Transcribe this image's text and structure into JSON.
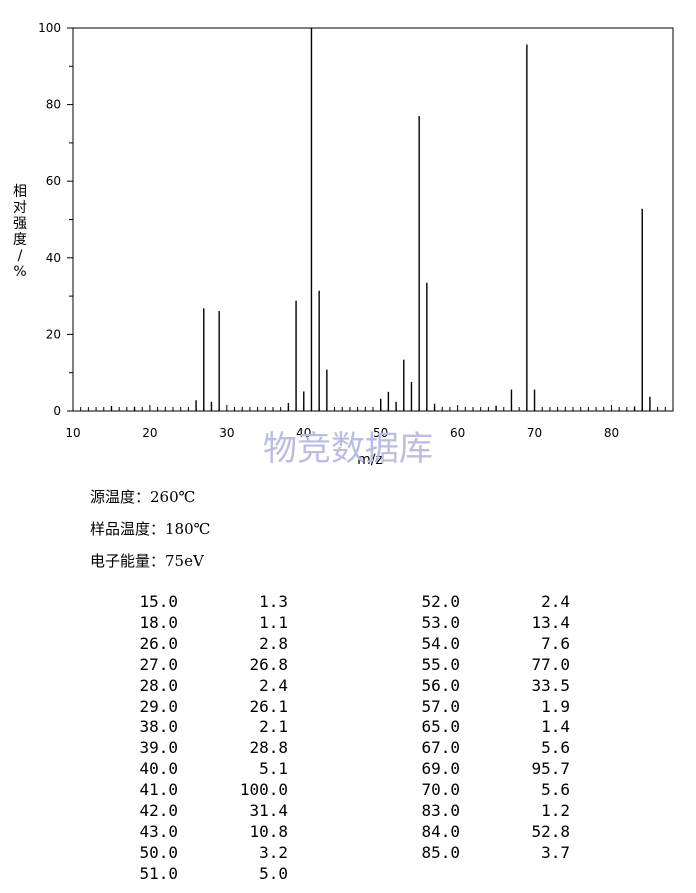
{
  "chart_data": {
    "type": "bar",
    "title": "",
    "xlabel": "m/z",
    "ylabel": "相对强度/%",
    "xlim": [
      10,
      88
    ],
    "ylim": [
      0,
      100
    ],
    "x_ticks": [
      "10",
      "20",
      "30",
      "40",
      "50",
      "60",
      "70",
      "80"
    ],
    "y_ticks": [
      "0",
      "20",
      "40",
      "60",
      "80",
      "100"
    ],
    "grid": false,
    "series": [
      {
        "x": [
          15,
          18,
          26,
          27,
          28,
          29,
          38,
          39,
          40,
          41,
          42,
          43,
          50,
          51,
          52,
          53,
          54,
          55,
          56,
          57,
          65,
          67,
          69,
          70,
          83,
          84,
          85
        ],
        "values": [
          1.3,
          1.1,
          2.8,
          26.8,
          2.4,
          26.1,
          2.1,
          28.8,
          5.1,
          100.0,
          31.4,
          10.8,
          3.2,
          5.0,
          2.4,
          13.4,
          7.6,
          77.0,
          33.5,
          1.9,
          1.4,
          5.6,
          95.7,
          5.6,
          1.2,
          52.8,
          3.7
        ]
      }
    ]
  },
  "watermark": "物竞数据库",
  "conditions": [
    "源温度：260℃",
    "样品温度：180℃",
    "电子能量：75eV"
  ],
  "peak_table_left": [
    [
      "15.0",
      "1.3"
    ],
    [
      "18.0",
      "1.1"
    ],
    [
      "26.0",
      "2.8"
    ],
    [
      "27.0",
      "26.8"
    ],
    [
      "28.0",
      "2.4"
    ],
    [
      "29.0",
      "26.1"
    ],
    [
      "38.0",
      "2.1"
    ],
    [
      "39.0",
      "28.8"
    ],
    [
      "40.0",
      "5.1"
    ],
    [
      "41.0",
      "100.0"
    ],
    [
      "42.0",
      "31.4"
    ],
    [
      "43.0",
      "10.8"
    ],
    [
      "50.0",
      "3.2"
    ],
    [
      "51.0",
      "5.0"
    ]
  ],
  "peak_table_right": [
    [
      "52.0",
      "2.4"
    ],
    [
      "53.0",
      "13.4"
    ],
    [
      "54.0",
      "7.6"
    ],
    [
      "55.0",
      "77.0"
    ],
    [
      "56.0",
      "33.5"
    ],
    [
      "57.0",
      "1.9"
    ],
    [
      "65.0",
      "1.4"
    ],
    [
      "67.0",
      "5.6"
    ],
    [
      "69.0",
      "95.7"
    ],
    [
      "70.0",
      "5.6"
    ],
    [
      "83.0",
      "1.2"
    ],
    [
      "84.0",
      "52.8"
    ],
    [
      "85.0",
      "3.7"
    ]
  ]
}
